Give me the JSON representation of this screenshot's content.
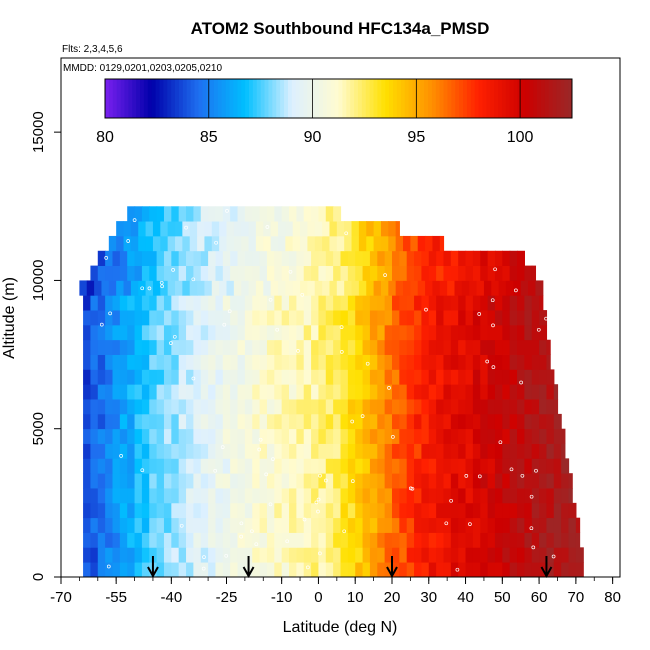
{
  "chart_data": {
    "type": "heatmap",
    "title": "ATOM2 Southbound HFC134a_PMSD",
    "subtitle_flights": "Flts: 2,3,4,5,6",
    "subtitle_dates": "MMDD: 0129,0201,0203,0205,0210",
    "xlabel": "Latitude (deg N)",
    "ylabel": "Altitude (m)",
    "xlim": [
      -70,
      82
    ],
    "ylim": [
      0,
      17500
    ],
    "x_ticks": [
      -70,
      -55,
      -40,
      -25,
      -10,
      0,
      10,
      20,
      30,
      40,
      50,
      60,
      70,
      80
    ],
    "y_ticks": [
      0,
      5000,
      10000,
      15000
    ],
    "colorbar": {
      "min": 80,
      "max": 102.5,
      "ticks": [
        80,
        85,
        90,
        95,
        100
      ],
      "colors": [
        "#7a20f0",
        "#0000aa",
        "#1e6ff0",
        "#00bfff",
        "#ddf0ff",
        "#fffbd0",
        "#ffe000",
        "#ff9000",
        "#ff2000",
        "#cc0000",
        "#9a2828"
      ]
    },
    "altitude_bands": [
      {
        "alt": 0,
        "lat_min": -64,
        "lat_max": 72
      },
      {
        "alt": 500,
        "lat_min": -64,
        "lat_max": 72
      },
      {
        "alt": 1000,
        "lat_min": -64,
        "lat_max": 71
      },
      {
        "alt": 1500,
        "lat_min": -64,
        "lat_max": 71
      },
      {
        "alt": 2000,
        "lat_min": -64,
        "lat_max": 70
      },
      {
        "alt": 2500,
        "lat_min": -64,
        "lat_max": 69
      },
      {
        "alt": 3000,
        "lat_min": -64,
        "lat_max": 69
      },
      {
        "alt": 3500,
        "lat_min": -64,
        "lat_max": 68
      },
      {
        "alt": 4000,
        "lat_min": -64,
        "lat_max": 67
      },
      {
        "alt": 4500,
        "lat_min": -64,
        "lat_max": 67
      },
      {
        "alt": 5000,
        "lat_min": -64,
        "lat_max": 66
      },
      {
        "alt": 5500,
        "lat_min": -64,
        "lat_max": 65
      },
      {
        "alt": 6000,
        "lat_min": -64,
        "lat_max": 65
      },
      {
        "alt": 6500,
        "lat_min": -64,
        "lat_max": 64
      },
      {
        "alt": 7000,
        "lat_min": -64,
        "lat_max": 63
      },
      {
        "alt": 7500,
        "lat_min": -64,
        "lat_max": 63
      },
      {
        "alt": 8000,
        "lat_min": -64,
        "lat_max": 62
      },
      {
        "alt": 8500,
        "lat_min": -64,
        "lat_max": 62
      },
      {
        "alt": 9000,
        "lat_min": -64,
        "lat_max": 61
      },
      {
        "alt": 9500,
        "lat_min": -65,
        "lat_max": 61
      },
      {
        "alt": 10000,
        "lat_min": -62,
        "lat_max": 59
      },
      {
        "alt": 10500,
        "lat_min": -60,
        "lat_max": 56
      },
      {
        "alt": 11000,
        "lat_min": -57,
        "lat_max": 34
      },
      {
        "alt": 11500,
        "lat_min": -55,
        "lat_max": 22
      },
      {
        "alt": 12000,
        "lat_min": -52,
        "lat_max": 6
      }
    ],
    "latitude_gradient": [
      {
        "lat": -64,
        "value": 83.5
      },
      {
        "lat": -55,
        "value": 85.5
      },
      {
        "lat": -45,
        "value": 87.5
      },
      {
        "lat": -35,
        "value": 89.0
      },
      {
        "lat": -25,
        "value": 90.0
      },
      {
        "lat": -15,
        "value": 91.0
      },
      {
        "lat": -5,
        "value": 91.5
      },
      {
        "lat": 5,
        "value": 92.5
      },
      {
        "lat": 15,
        "value": 95.0
      },
      {
        "lat": 22,
        "value": 97.0
      },
      {
        "lat": 30,
        "value": 98.5
      },
      {
        "lat": 40,
        "value": 99.5
      },
      {
        "lat": 50,
        "value": 100.5
      },
      {
        "lat": 60,
        "value": 101.5
      },
      {
        "lat": 72,
        "value": 102.0
      }
    ],
    "arrow_latitudes": [
      -45,
      -19,
      20,
      62
    ]
  }
}
